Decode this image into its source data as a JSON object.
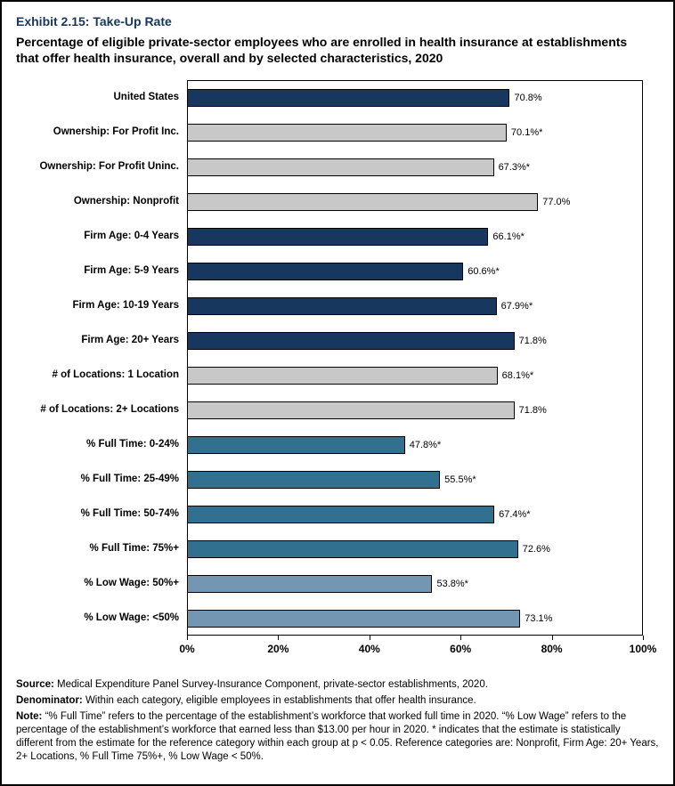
{
  "chart_data": {
    "type": "bar",
    "orientation": "horizontal",
    "title": "Exhibit 2.15: Take-Up Rate",
    "subtitle": "Percentage of eligible private-sector employees who are enrolled in health insurance at establishments that offer health insurance, overall and by selected characteristics, 2020",
    "xlabel": "",
    "ylabel": "",
    "xlim": [
      0,
      100
    ],
    "x_ticks": [
      "0%",
      "20%",
      "40%",
      "60%",
      "80%",
      "100%"
    ],
    "grid": false,
    "legend": "none",
    "bars": [
      {
        "label": "United States",
        "value": 70.8,
        "display": "70.8%",
        "group": "overall"
      },
      {
        "label": "Ownership: For Profit Inc.",
        "value": 70.1,
        "display": "70.1%*",
        "group": "ownership"
      },
      {
        "label": "Ownership: For Profit Uninc.",
        "value": 67.3,
        "display": "67.3%*",
        "group": "ownership"
      },
      {
        "label": "Ownership: Nonprofit",
        "value": 77.0,
        "display": "77.0%",
        "group": "ownership"
      },
      {
        "label": "Firm Age: 0-4 Years",
        "value": 66.1,
        "display": "66.1%*",
        "group": "firm_age"
      },
      {
        "label": "Firm Age: 5-9 Years",
        "value": 60.6,
        "display": "60.6%*",
        "group": "firm_age"
      },
      {
        "label": "Firm Age: 10-19 Years",
        "value": 67.9,
        "display": "67.9%*",
        "group": "firm_age"
      },
      {
        "label": "Firm Age: 20+ Years",
        "value": 71.8,
        "display": "71.8%",
        "group": "firm_age"
      },
      {
        "label": "# of Locations: 1 Location",
        "value": 68.1,
        "display": "68.1%*",
        "group": "locations"
      },
      {
        "label": "# of Locations: 2+ Locations",
        "value": 71.8,
        "display": "71.8%",
        "group": "locations"
      },
      {
        "label": "% Full Time: 0-24%",
        "value": 47.8,
        "display": "47.8%*",
        "group": "full_time"
      },
      {
        "label": "% Full Time: 25-49%",
        "value": 55.5,
        "display": "55.5%*",
        "group": "full_time"
      },
      {
        "label": "% Full Time: 50-74%",
        "value": 67.4,
        "display": "67.4%*",
        "group": "full_time"
      },
      {
        "label": "% Full Time: 75%+",
        "value": 72.6,
        "display": "72.6%",
        "group": "full_time"
      },
      {
        "label": "% Low Wage: 50%+",
        "value": 53.8,
        "display": "53.8%*",
        "group": "low_wage"
      },
      {
        "label": "% Low Wage: <50%",
        "value": 73.1,
        "display": "73.1%",
        "group": "low_wage"
      }
    ],
    "colors": {
      "overall": "#17375e",
      "ownership": "#c8c8c8",
      "firm_age": "#17375e",
      "locations": "#c8c8c8",
      "full_time": "#31708f",
      "low_wage": "#7396b2"
    }
  },
  "footer": {
    "source_label": "Source:",
    "source_text": " Medical Expenditure Panel Survey-Insurance Component, private-sector establishments, 2020.",
    "denominator_label": "Denominator:",
    "denominator_text": " Within each category, eligible employees in establishments that offer health insurance.",
    "note_label": "Note:",
    "note_text": " “% Full Time” refers to the percentage of the establishment’s workforce that worked full time in 2020. “% Low Wage” refers to the percentage of the establishment’s workforce that earned less than $13.00 per hour in 2020. * indicates that the estimate is statistically different from the estimate for the reference category within each group at p < 0.05.  Reference categories are: Nonprofit, Firm Age: 20+ Years, 2+ Locations, % Full Time 75%+, % Low Wage < 50%."
  }
}
